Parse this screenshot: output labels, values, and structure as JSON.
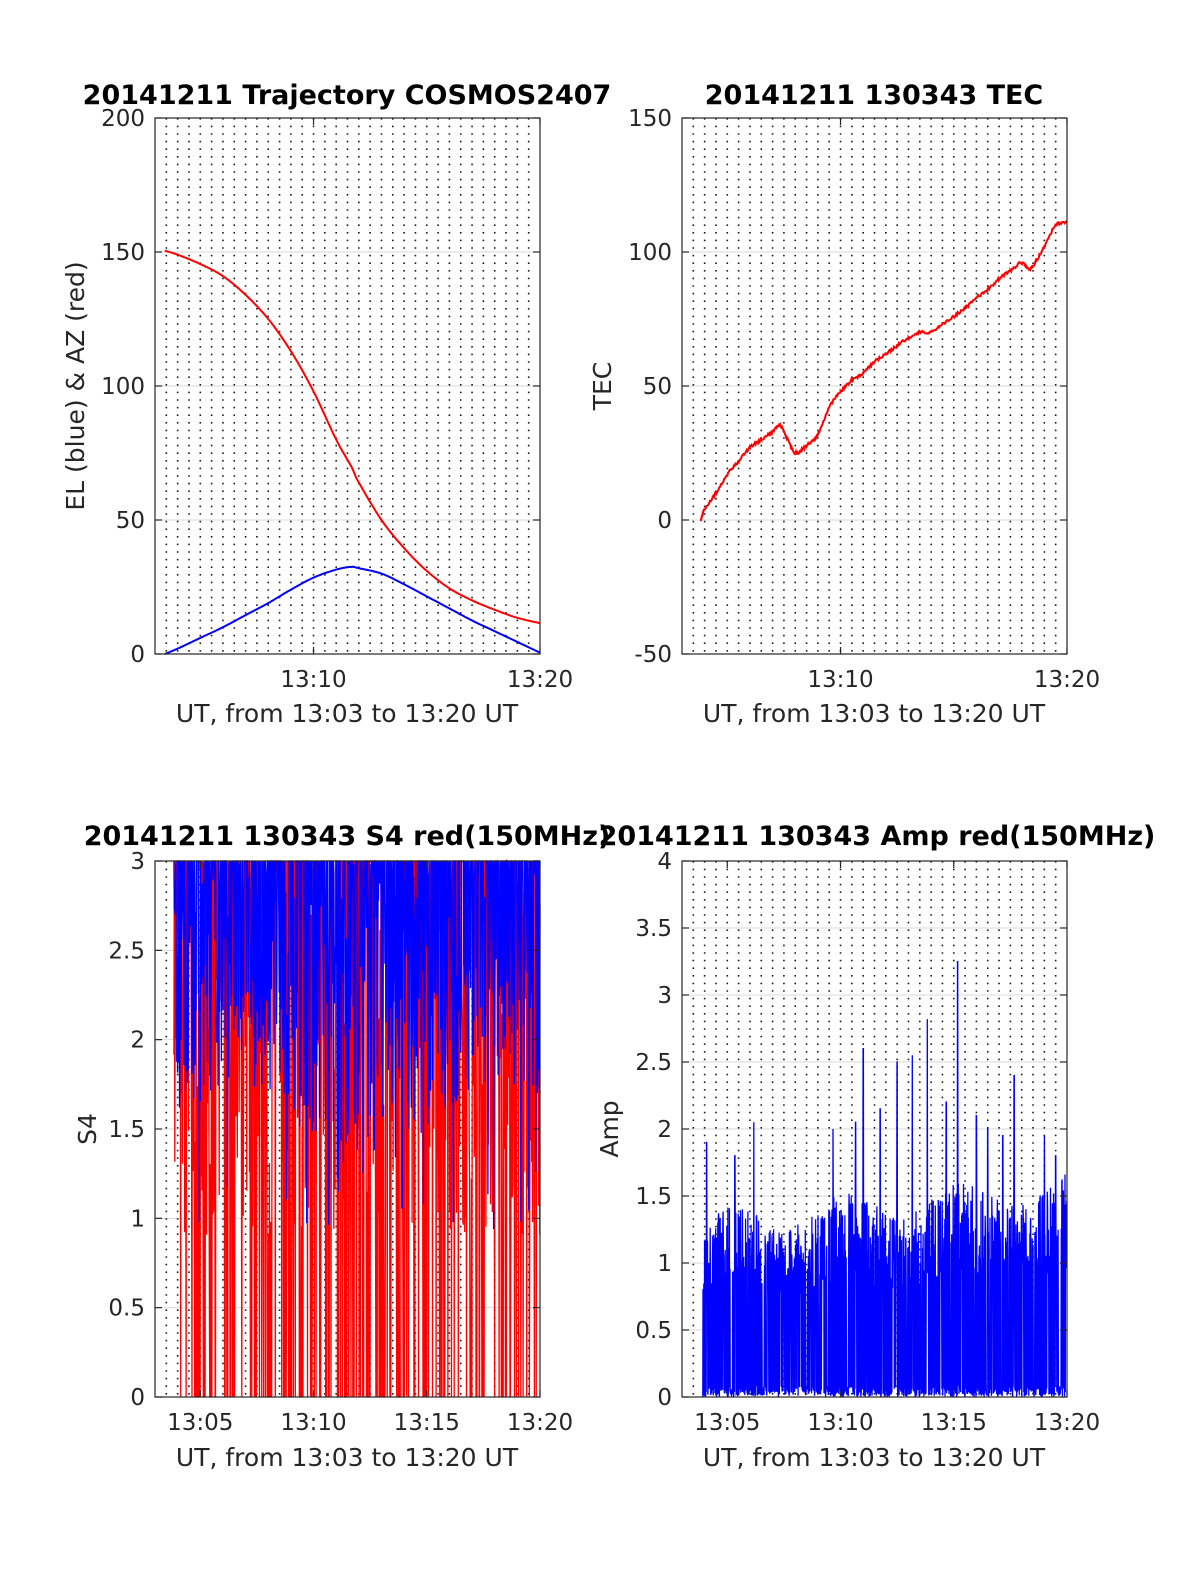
{
  "colors": {
    "el": "#0000ff",
    "az": "#ff0000",
    "tec": "#ff0000",
    "s4_red": "#ff0000",
    "s4_blue": "#0000ff",
    "amp": "#0000ff",
    "grid": "#d9d9d9",
    "axis": "#262626"
  },
  "chart_data": [
    {
      "id": "trajectory",
      "type": "line",
      "title": "20141211 Trajectory COSMOS2407",
      "xlabel": "UT, from 13:03 to 13:20 UT",
      "ylabel": "EL (blue) & AZ (red)",
      "xlim": [
        "13:03",
        "13:20"
      ],
      "ylim": [
        0,
        200
      ],
      "yticks": [
        "0",
        "50",
        "100",
        "150",
        "200"
      ],
      "xticks": [
        "13:10",
        "13:20"
      ],
      "grid": "vertical dotted every 30 s, horizontal light at y ticks",
      "series": [
        {
          "color": "#ff0000",
          "x": [
            "13:03:26",
            "13:04",
            "13:05",
            "13:06",
            "13:07",
            "13:08",
            "13:09",
            "13:10",
            "13:11",
            "13:11:40",
            "13:12",
            "13:13",
            "13:14",
            "13:15",
            "13:16",
            "13:17",
            "13:18",
            "13:19",
            "13:20"
          ],
          "y": [
            150.5,
            149,
            145.5,
            141,
            134,
            125,
            113,
            98,
            80,
            70,
            64,
            50,
            39.5,
            31,
            24.5,
            20,
            16.5,
            13.5,
            11.5
          ]
        },
        {
          "color": "#0000ff",
          "x": [
            "13:03:26",
            "13:04",
            "13:05",
            "13:06",
            "13:07",
            "13:08",
            "13:09",
            "13:10",
            "13:11",
            "13:11:40",
            "13:12",
            "13:13",
            "13:14",
            "13:15",
            "13:16",
            "13:17",
            "13:18",
            "13:19",
            "13:20"
          ],
          "y": [
            0,
            2,
            6,
            10,
            14.5,
            19,
            24,
            28.5,
            31.5,
            32.5,
            32,
            30,
            26,
            21.5,
            17,
            12.5,
            8.5,
            4.5,
            0.5
          ]
        }
      ]
    },
    {
      "id": "tec",
      "type": "line",
      "title": "20141211 130343 TEC",
      "xlabel": "UT, from 13:03 to 13:20 UT",
      "ylabel": "TEC",
      "xlim": [
        "13:03",
        "13:20"
      ],
      "ylim": [
        -50,
        150
      ],
      "yticks": [
        "-50",
        "0",
        "50",
        "100",
        "150"
      ],
      "xticks": [
        "13:10",
        "13:20"
      ],
      "series": [
        {
          "color": "#ff0000",
          "x": [
            "13:03:50",
            "13:04",
            "13:04:30",
            "13:05",
            "13:05:30",
            "13:06",
            "13:06:30",
            "13:07",
            "13:07:20",
            "13:07:40",
            "13:08",
            "13:08:20",
            "13:08:40",
            "13:09",
            "13:09:30",
            "13:10",
            "13:10:30",
            "13:11",
            "13:11:30",
            "13:12",
            "13:12:30",
            "13:13",
            "13:13:30",
            "13:14",
            "13:14:30",
            "13:15",
            "13:15:30",
            "13:16",
            "13:16:30",
            "13:17",
            "13:17:30",
            "13:18",
            "13:18:20",
            "13:18:40",
            "13:19",
            "13:19:30",
            "13:20"
          ],
          "y": [
            0,
            4,
            10,
            17,
            22,
            27,
            30,
            33,
            35.5,
            30,
            25,
            26.5,
            29,
            32,
            42,
            48,
            52,
            55,
            59,
            62,
            65,
            68,
            70,
            70,
            73,
            76,
            79,
            83,
            86,
            90,
            93,
            96,
            93.5,
            97,
            102,
            110,
            111
          ]
        }
      ]
    },
    {
      "id": "s4",
      "type": "line",
      "title": "20141211 130343 S4 red(150MHz)",
      "xlabel": "UT, from 13:03 to 13:20 UT",
      "ylabel": "S4",
      "xlim": [
        "13:03",
        "13:20"
      ],
      "ylim": [
        0,
        3
      ],
      "yticks": [
        "0",
        "0.5",
        "1",
        "1.5",
        "2",
        "2.5",
        "3"
      ],
      "xticks": [
        "13:05",
        "13:10",
        "13:15",
        "13:20"
      ],
      "series": [
        {
          "color": "#ff0000",
          "x_range": [
            "13:03:50",
            "13:20"
          ],
          "y_range": [
            0,
            3
          ],
          "samples": "dense noise spanning full range"
        },
        {
          "color": "#0000ff",
          "x_range": [
            "13:03:50",
            "13:20"
          ],
          "y_range": [
            1.0,
            3
          ],
          "samples": "dense noise, lower envelope about 1.5"
        }
      ]
    },
    {
      "id": "amp",
      "type": "line",
      "title": "20141211 130343 Amp red(150MHz)",
      "xlabel": "UT, from 13:03 to 13:20 UT",
      "ylabel": "Amp",
      "xlim": [
        "13:03",
        "13:20"
      ],
      "ylim": [
        0,
        4
      ],
      "yticks": [
        "0",
        "0.5",
        "1",
        "1.5",
        "2",
        "2.5",
        "3",
        "3.5",
        "4"
      ],
      "xticks": [
        "13:05",
        "13:10",
        "13:15",
        "13:20"
      ],
      "series": [
        {
          "color": "#0000ff",
          "x_range": [
            "13:03:55",
            "13:20"
          ],
          "baseline_envelope": 1.4,
          "peaks": [
            [
              "13:04:05",
              1.9
            ],
            [
              "13:05:20",
              1.8
            ],
            [
              "13:06:10",
              2.05
            ],
            [
              "13:09:40",
              2.0
            ],
            [
              "13:10:40",
              2.05
            ],
            [
              "13:11:00",
              2.6
            ],
            [
              "13:11:45",
              2.15
            ],
            [
              "13:12:30",
              2.5
            ],
            [
              "13:13:10",
              2.55
            ],
            [
              "13:13:50",
              2.82
            ],
            [
              "13:14:40",
              2.2
            ],
            [
              "13:15:10",
              3.25
            ],
            [
              "13:16:00",
              2.1
            ],
            [
              "13:16:30",
              2.0
            ],
            [
              "13:17:10",
              1.95
            ],
            [
              "13:17:40",
              2.4
            ],
            [
              "13:19:00",
              1.95
            ],
            [
              "13:19:30",
              1.8
            ]
          ]
        }
      ]
    }
  ]
}
